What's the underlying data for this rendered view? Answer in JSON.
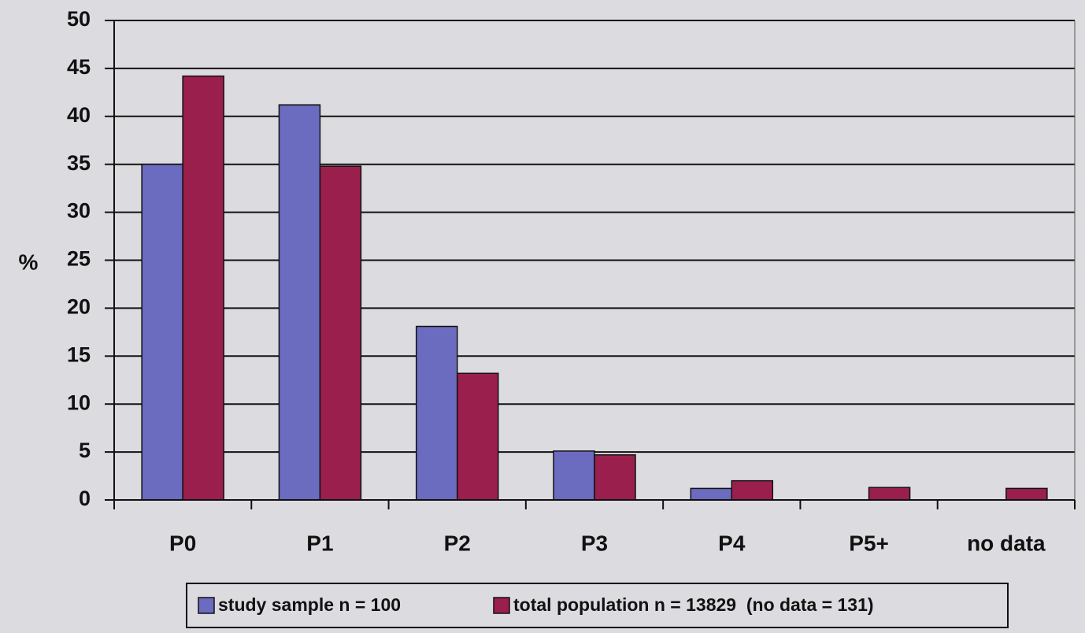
{
  "chart_data": {
    "type": "bar",
    "y_label": "%",
    "categories": [
      "P0",
      "P1",
      "P2",
      "P3",
      "P4",
      "P5+",
      "no data"
    ],
    "series": [
      {
        "name": "study sample n = 100",
        "color": "#6b6bbf",
        "values": [
          35,
          41.2,
          18.1,
          5.1,
          1.2,
          0,
          0
        ]
      },
      {
        "name": "total population n = 13829  (no data = 131)",
        "color": "#9b1f4c",
        "values": [
          44.2,
          34.8,
          13.2,
          4.7,
          2,
          1.3,
          1.2
        ]
      }
    ],
    "ylim": [
      0,
      50
    ],
    "yticks": [
      0,
      5,
      10,
      15,
      20,
      25,
      30,
      35,
      40,
      45,
      50
    ],
    "grid": true,
    "legend": "bottom"
  }
}
